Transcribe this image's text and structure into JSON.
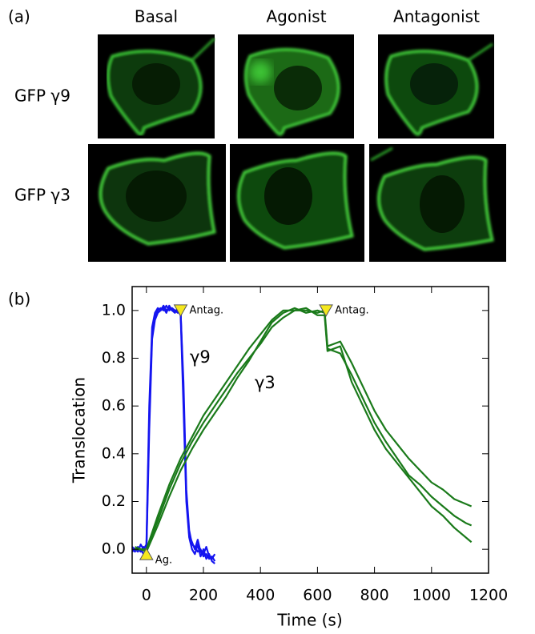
{
  "panel_a": {
    "label": "(a)",
    "columns": [
      "Basal",
      "Agonist",
      "Antagonist"
    ],
    "rows": [
      "GFP γ9",
      "GFP γ3"
    ]
  },
  "chart_data": {
    "type": "line",
    "panel_label": "(b)",
    "x_label": "Time (s)",
    "y_label": "Translocation",
    "xlim": [
      -50,
      1200
    ],
    "ylim": [
      -0.1,
      1.1
    ],
    "xticks": [
      0,
      200,
      400,
      600,
      800,
      1000,
      1200
    ],
    "yticks": [
      {
        "value": 0,
        "label": "0.0"
      },
      {
        "value": 0.2,
        "label": "0.2"
      },
      {
        "value": 0.4,
        "label": "0.4"
      },
      {
        "value": 0.6,
        "label": "0.6"
      },
      {
        "value": 0.8,
        "label": "0.8"
      },
      {
        "value": 1,
        "label": "1.0"
      }
    ],
    "series": [
      {
        "name": "γ9",
        "color": "#1414f0",
        "traces": [
          {
            "x": [
              -50,
              -40,
              -30,
              -20,
              -10,
              0,
              10,
              20,
              30,
              40,
              50,
              60,
              70,
              80,
              90,
              100,
              110,
              120,
              130,
              140,
              150,
              160,
              170,
              180,
              190,
              200,
              210,
              220,
              230,
              240
            ],
            "values": [
              0.0,
              -0.01,
              0.01,
              0.0,
              -0.02,
              0.0,
              0.55,
              0.9,
              0.97,
              1.0,
              1.01,
              1.0,
              1.02,
              1.0,
              1.01,
              1.0,
              1.0,
              0.98,
              0.6,
              0.2,
              0.05,
              0.0,
              -0.02,
              0.02,
              -0.03,
              0.0,
              -0.04,
              -0.02,
              -0.05,
              -0.06
            ]
          },
          {
            "x": [
              -50,
              -40,
              -30,
              -20,
              -10,
              0,
              10,
              20,
              30,
              40,
              50,
              60,
              70,
              80,
              90,
              100,
              110,
              120,
              130,
              140,
              150,
              160,
              170,
              180,
              190,
              200,
              210,
              220,
              230,
              240
            ],
            "values": [
              0.01,
              0.0,
              -0.01,
              0.02,
              0.0,
              0.02,
              0.6,
              0.93,
              0.99,
              1.01,
              1.0,
              1.02,
              1.0,
              1.01,
              1.0,
              0.99,
              1.01,
              0.99,
              0.7,
              0.25,
              0.08,
              0.02,
              0.01,
              -0.01,
              0.0,
              -0.03,
              -0.02,
              -0.04,
              -0.03,
              -0.05
            ]
          },
          {
            "x": [
              -50,
              -40,
              -30,
              -20,
              -10,
              0,
              10,
              20,
              30,
              40,
              50,
              60,
              70,
              80,
              90,
              100,
              110,
              120,
              130,
              140,
              150,
              160,
              170,
              180,
              190,
              200,
              210,
              220,
              230,
              240
            ],
            "values": [
              -0.01,
              0.0,
              0.0,
              -0.01,
              0.01,
              -0.01,
              0.5,
              0.88,
              0.96,
              0.99,
              1.0,
              1.01,
              0.99,
              1.02,
              1.0,
              1.0,
              0.99,
              1.0,
              0.65,
              0.22,
              0.06,
              0.03,
              0.0,
              0.04,
              -0.01,
              -0.02,
              0.01,
              -0.03,
              -0.04,
              -0.02
            ]
          }
        ]
      },
      {
        "name": "γ3",
        "color": "#1a7a1a",
        "traces": [
          {
            "x": [
              -40,
              0,
              40,
              80,
              120,
              160,
              200,
              240,
              280,
              320,
              360,
              400,
              440,
              480,
              520,
              560,
              600,
              625,
              635,
              680,
              720,
              760,
              800,
              840,
              880,
              920,
              960,
              1000,
              1040,
              1080,
              1120,
              1140
            ],
            "values": [
              0.0,
              0.0,
              0.12,
              0.25,
              0.36,
              0.45,
              0.53,
              0.6,
              0.67,
              0.74,
              0.8,
              0.86,
              0.93,
              0.97,
              1.0,
              1.0,
              0.99,
              1.0,
              0.85,
              0.87,
              0.78,
              0.68,
              0.58,
              0.5,
              0.44,
              0.38,
              0.33,
              0.28,
              0.25,
              0.21,
              0.19,
              0.18
            ]
          },
          {
            "x": [
              -40,
              0,
              40,
              80,
              120,
              160,
              200,
              240,
              280,
              320,
              360,
              400,
              440,
              480,
              520,
              560,
              600,
              625,
              635,
              680,
              720,
              760,
              800,
              840,
              880,
              920,
              960,
              1000,
              1040,
              1080,
              1120,
              1140
            ],
            "values": [
              0.01,
              -0.01,
              0.1,
              0.22,
              0.33,
              0.42,
              0.5,
              0.57,
              0.64,
              0.72,
              0.79,
              0.87,
              0.95,
              0.99,
              1.01,
              0.99,
              1.0,
              0.99,
              0.84,
              0.82,
              0.73,
              0.63,
              0.53,
              0.45,
              0.38,
              0.31,
              0.27,
              0.22,
              0.18,
              0.14,
              0.11,
              0.1
            ]
          },
          {
            "x": [
              -40,
              0,
              40,
              80,
              120,
              160,
              200,
              240,
              280,
              320,
              360,
              400,
              440,
              480,
              520,
              560,
              600,
              625,
              635,
              680,
              720,
              760,
              800,
              840,
              880,
              920,
              960,
              1000,
              1040,
              1080,
              1120,
              1140
            ],
            "values": [
              0.0,
              0.0,
              0.14,
              0.27,
              0.38,
              0.47,
              0.56,
              0.63,
              0.7,
              0.77,
              0.84,
              0.9,
              0.96,
              1.0,
              1.0,
              1.01,
              0.98,
              0.98,
              0.83,
              0.85,
              0.7,
              0.6,
              0.5,
              0.42,
              0.36,
              0.3,
              0.24,
              0.18,
              0.14,
              0.09,
              0.05,
              0.03
            ]
          }
        ]
      }
    ],
    "annotations": [
      {
        "text": "Antag.",
        "x": 120,
        "y": 1.0,
        "marker": "down"
      },
      {
        "text": "Antag.",
        "x": 630,
        "y": 1.0,
        "marker": "down"
      },
      {
        "text": "Ag.",
        "x": 0,
        "y": -0.02,
        "marker": "up"
      }
    ]
  }
}
